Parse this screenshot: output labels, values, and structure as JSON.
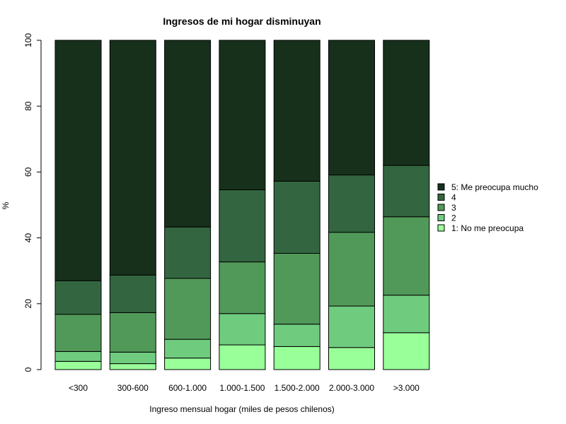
{
  "chart_data": {
    "type": "bar",
    "stacked": true,
    "title": "Ingresos de mi hogar disminuyan",
    "xlabel": "Ingreso mensual hogar (miles de pesos chilenos)",
    "ylabel": "%",
    "ylim": [
      0,
      100
    ],
    "yticks": [
      0,
      20,
      40,
      60,
      80,
      100
    ],
    "categories": [
      "<300",
      "300-600",
      "600-1.000",
      "1.000-1.500",
      "1.500-2.000",
      "2.000-3.000",
      ">3.000"
    ],
    "series": [
      {
        "name": "1: No me preocupa",
        "color": "#99ff99",
        "values": [
          2.5,
          1.8,
          3.5,
          7.5,
          7.0,
          6.7,
          11.2
        ]
      },
      {
        "name": "2",
        "color": "#6fcc7f",
        "values": [
          3.0,
          3.5,
          5.7,
          9.5,
          6.8,
          12.6,
          11.4
        ]
      },
      {
        "name": "3",
        "color": "#519958",
        "values": [
          11.3,
          12.0,
          18.5,
          15.7,
          21.5,
          22.4,
          23.8
        ]
      },
      {
        "name": "4",
        "color": "#336640",
        "values": [
          10.2,
          11.4,
          15.6,
          21.9,
          21.9,
          17.4,
          15.6
        ]
      },
      {
        "name": "5: Me preocupa mucho",
        "color": "#17301c",
        "values": [
          73.0,
          71.3,
          56.7,
          45.4,
          42.8,
          40.9,
          38.0
        ]
      }
    ],
    "legend_position": "right",
    "grid": false
  }
}
